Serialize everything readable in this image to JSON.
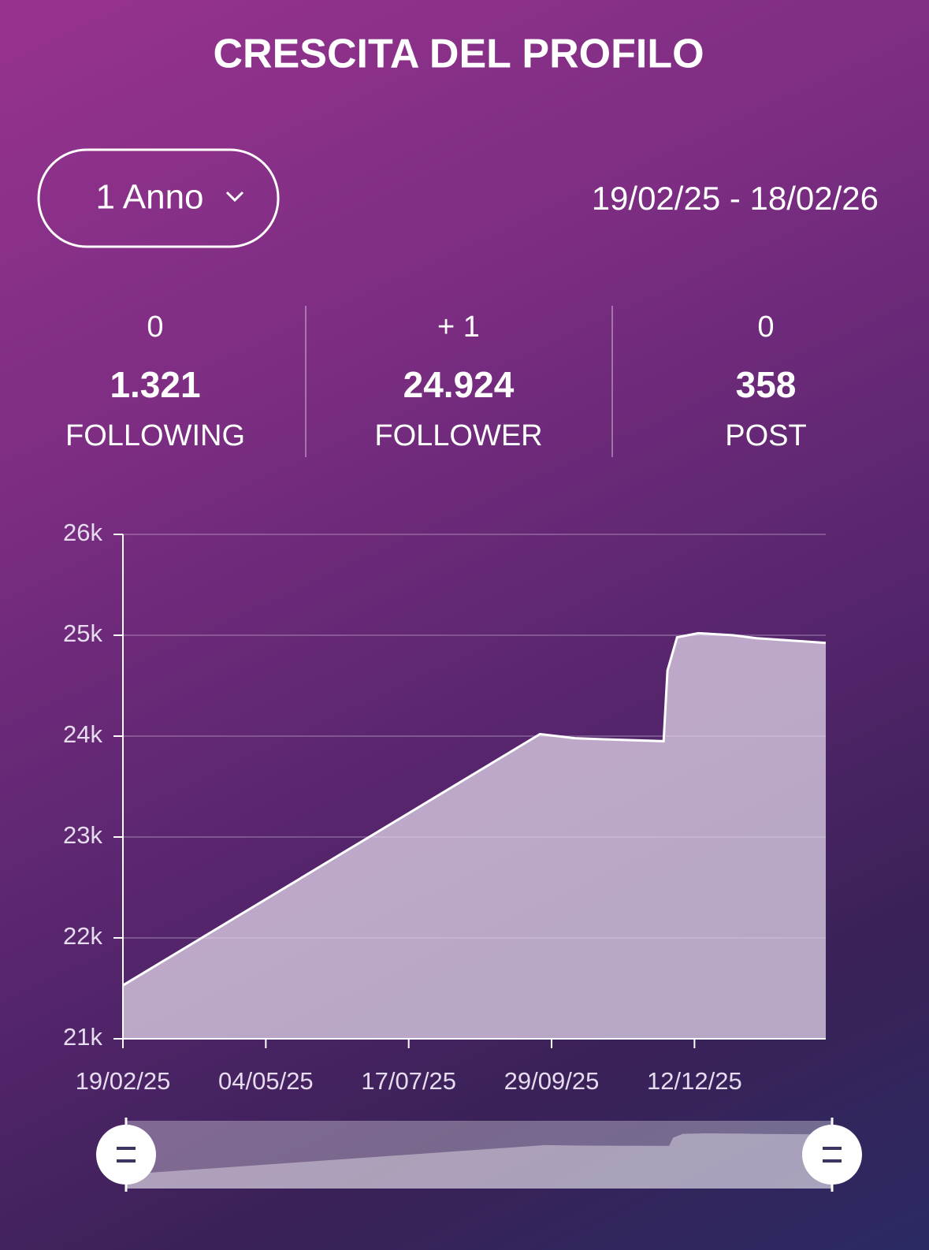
{
  "title": "CRESCITA DEL PROFILO",
  "period_selector": "1 Anno",
  "date_range": "19/02/25 - 18/02/26",
  "stats": [
    {
      "change": "0",
      "value": "1.321",
      "label": "FOLLOWING"
    },
    {
      "change": "+ 1",
      "value": "24.924",
      "label": "FOLLOWER"
    },
    {
      "change": "0",
      "value": "358",
      "label": "POST"
    }
  ],
  "chart_data": {
    "type": "area",
    "x": [
      "19/02/25",
      "23/09/25",
      "11/10/25",
      "23/10/25",
      "26/11/25",
      "28/11/25",
      "03/12/25",
      "14/12/25",
      "01/01/26",
      "13/01/26",
      "29/01/26",
      "18/02/26"
    ],
    "values": [
      21530,
      24020,
      23980,
      23970,
      23950,
      24650,
      24980,
      25020,
      25000,
      24970,
      24950,
      24924
    ],
    "color": "#ffffff",
    "xlim": [
      "19/02/25",
      "18/02/26"
    ],
    "xticks": [
      "19/02/25",
      "04/05/25",
      "17/07/25",
      "29/09/25",
      "12/12/25"
    ],
    "ylim": [
      21000,
      26000
    ],
    "yticks": [
      {
        "value": 21000,
        "label": "21k"
      },
      {
        "value": 22000,
        "label": "22k"
      },
      {
        "value": 23000,
        "label": "23k"
      },
      {
        "value": 24000,
        "label": "24k"
      },
      {
        "value": 25000,
        "label": "25k"
      },
      {
        "value": 26000,
        "label": "26k"
      }
    ],
    "grid": true
  }
}
